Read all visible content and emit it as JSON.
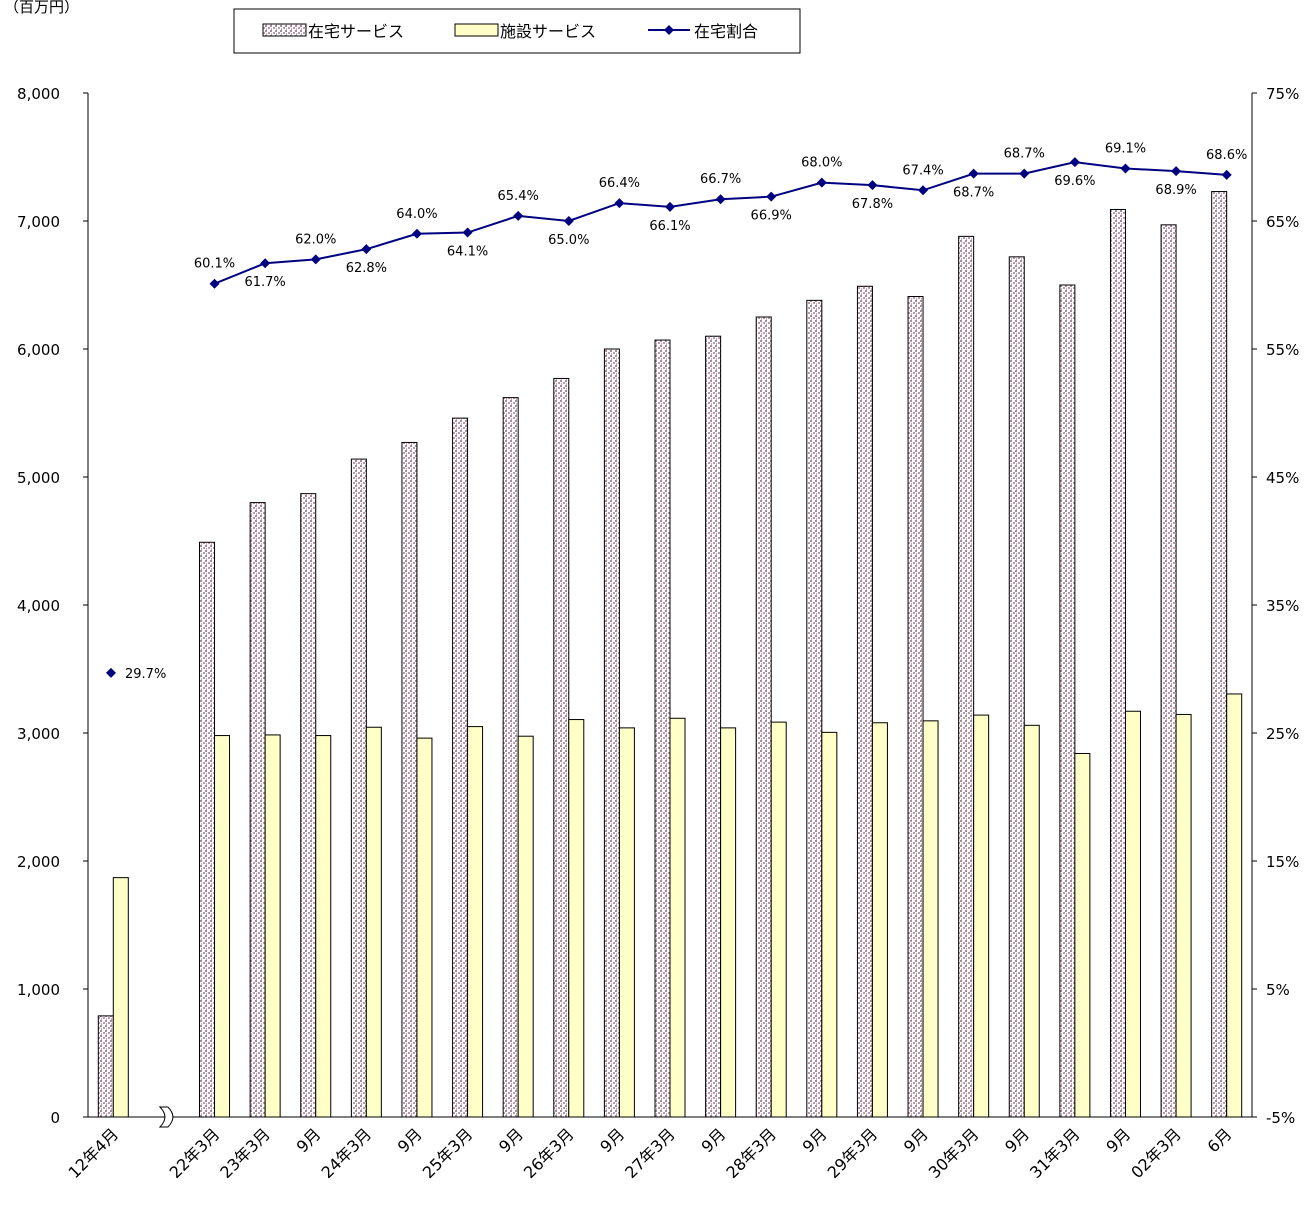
{
  "chart_data": {
    "type": "bar",
    "ylabel": "（百万円）",
    "ylim": [
      0,
      8000
    ],
    "y2lim": [
      -5,
      75
    ],
    "y_ticks": [
      "0",
      "1,000",
      "2,000",
      "3,000",
      "4,000",
      "5,000",
      "6,000",
      "7,000",
      "8,000"
    ],
    "y2_ticks": [
      "-5%",
      "5%",
      "15%",
      "25%",
      "35%",
      "45%",
      "55%",
      "65%",
      "75%"
    ],
    "legend_position": "top-center",
    "axis_break_after_first_category": true,
    "colors": {
      "home": "#a98a9b",
      "facility": "#ffffc8",
      "ratio": "#000080"
    },
    "categories": [
      "12年4月",
      "22年3月",
      "23年3月",
      "9月",
      "24年3月",
      "9月",
      "25年3月",
      "9月",
      "26年3月",
      "9月",
      "27年3月",
      "9月",
      "28年3月",
      "9月",
      "29年3月",
      "9月",
      "30年3月",
      "9月",
      "31年3月",
      "9月",
      "02年3月",
      "6月"
    ],
    "series": [
      {
        "name": "在宅サービス",
        "kind": "bar",
        "axis": "left",
        "values": [
          790,
          4490,
          4800,
          4870,
          5140,
          5270,
          5460,
          5620,
          5770,
          6000,
          6070,
          6100,
          6250,
          6380,
          6490,
          6410,
          6880,
          6720,
          6500,
          7090,
          6970,
          7230
        ]
      },
      {
        "name": "施設サービス",
        "kind": "bar",
        "axis": "left",
        "values": [
          1870,
          2980,
          2985,
          2980,
          3045,
          2960,
          3050,
          2975,
          3105,
          3040,
          3115,
          3040,
          3085,
          3005,
          3080,
          3095,
          3140,
          3060,
          2840,
          3170,
          3145,
          3305
        ]
      },
      {
        "name": "在宅割合",
        "kind": "line",
        "axis": "right",
        "values": [
          29.7,
          60.1,
          61.7,
          62.0,
          62.8,
          64.0,
          64.1,
          65.4,
          65.0,
          66.4,
          66.1,
          66.7,
          66.9,
          68.0,
          67.8,
          67.4,
          68.7,
          68.7,
          69.6,
          69.1,
          68.9,
          68.6
        ],
        "labels": [
          "29.7%",
          "60.1%",
          "61.7%",
          "62.0%",
          "62.8%",
          "64.0%",
          "64.1%",
          "65.4%",
          "65.0%",
          "66.4%",
          "66.1%",
          "66.7%",
          "66.9%",
          "68.0%",
          "67.8%",
          "67.4%",
          "68.7%",
          "68.7%",
          "69.6%",
          "69.1%",
          "68.9%",
          "68.6%"
        ]
      }
    ]
  }
}
